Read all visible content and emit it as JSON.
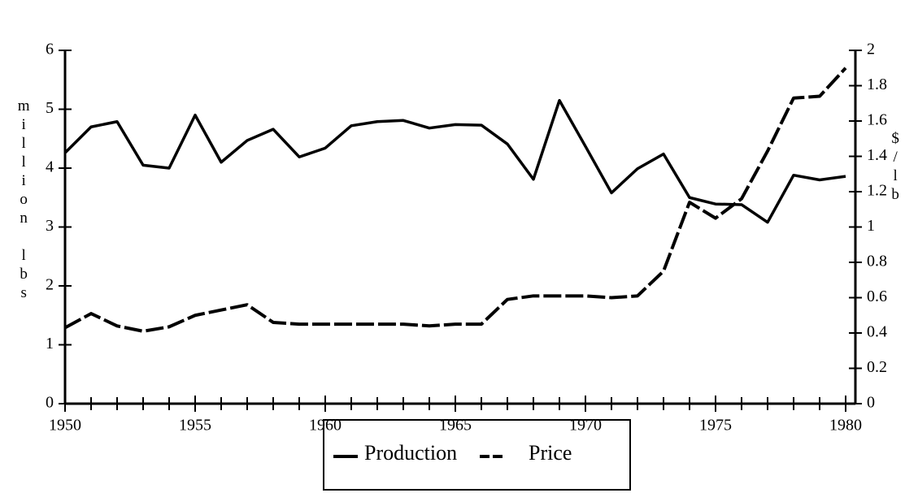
{
  "chart_data": {
    "type": "line",
    "ylabel": "million lbs",
    "y2label": "$/lb",
    "x": [
      1950,
      1951,
      1952,
      1953,
      1954,
      1955,
      1956,
      1957,
      1958,
      1959,
      1960,
      1961,
      1962,
      1963,
      1964,
      1965,
      1966,
      1967,
      1968,
      1969,
      1970,
      1971,
      1972,
      1973,
      1974,
      1975,
      1976,
      1977,
      1978,
      1979,
      1980
    ],
    "series": [
      {
        "name": "Production",
        "color": "#000000",
        "dash": false,
        "values": [
          4.26,
          4.7,
          4.79,
          4.05,
          4.0,
          4.9,
          4.1,
          4.47,
          4.66,
          4.19,
          4.34,
          4.72,
          4.79,
          4.81,
          4.68,
          4.74,
          4.73,
          4.41,
          3.81,
          5.15,
          4.37,
          3.58,
          3.99,
          4.24,
          3.5,
          3.39,
          3.38,
          3.08,
          3.88,
          3.8,
          3.86
        ]
      },
      {
        "name": "Price",
        "color": "#000000",
        "dash": true,
        "axis": "y2",
        "values": [
          0.43,
          0.51,
          0.44,
          0.41,
          0.435,
          0.5,
          0.53,
          0.56,
          0.46,
          0.45,
          0.45,
          0.45,
          0.45,
          0.45,
          0.44,
          0.45,
          0.45,
          0.59,
          0.61,
          0.61,
          0.61,
          0.6,
          0.61,
          0.75,
          1.14,
          1.05,
          1.16,
          1.43,
          1.73,
          1.74,
          1.9
        ]
      }
    ],
    "xlim": [
      1950,
      1980
    ],
    "xticks": [
      1950,
      1955,
      1960,
      1965,
      1970,
      1975,
      1980
    ],
    "ylim": [
      0,
      6
    ],
    "yticks": [
      0,
      1,
      2,
      3,
      4,
      5,
      6
    ],
    "y2lim": [
      0,
      2
    ],
    "y2ticks": [
      0,
      0.2,
      0.4,
      0.6,
      0.8,
      1,
      1.2,
      1.4,
      1.6,
      1.8,
      2
    ],
    "grid": false
  }
}
